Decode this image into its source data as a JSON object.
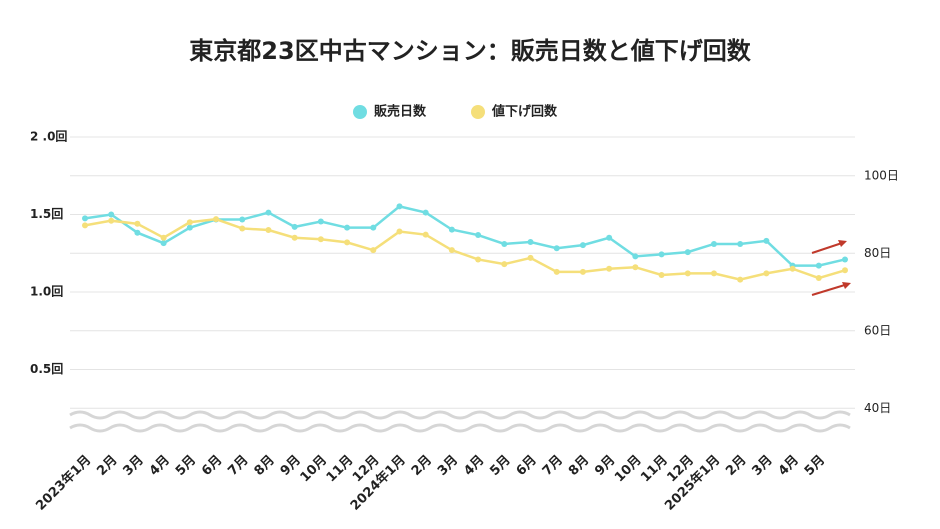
{
  "chart_data": {
    "type": "line",
    "title": "東京都23区中古マンション：販売日数と値下げ回数",
    "categories": [
      "2023年1月",
      "2月",
      "3月",
      "4月",
      "5月",
      "6月",
      "7月",
      "8月",
      "9月",
      "10月",
      "11月",
      "12月",
      "2024年1月",
      "2月",
      "3月",
      "4月",
      "5月",
      "6月",
      "7月",
      "8月",
      "9月",
      "10月",
      "11月",
      "12月",
      "2025年1月",
      "2月",
      "3月",
      "4月",
      "5月",
      null
    ],
    "series": [
      {
        "name": "販売日数",
        "color": "#70dde2",
        "axis": "y2",
        "values": [
          89.0,
          90.0,
          85.3,
          82.6,
          86.6,
          88.7,
          88.7,
          90.5,
          86.8,
          88.2,
          86.6,
          86.6,
          92.1,
          90.5,
          86.1,
          84.7,
          82.4,
          82.9,
          81.3,
          82.1,
          84.0,
          79.2,
          79.7,
          80.3,
          82.4,
          82.4,
          83.2,
          76.8,
          76.8,
          78.4
        ]
      },
      {
        "name": "値下げ回数",
        "color": "#f5df7a",
        "values": [
          1.43,
          1.46,
          1.44,
          1.35,
          1.45,
          1.47,
          1.41,
          1.4,
          1.35,
          1.34,
          1.32,
          1.27,
          1.39,
          1.37,
          1.27,
          1.21,
          1.18,
          1.22,
          1.13,
          1.13,
          1.15,
          1.16,
          1.11,
          1.12,
          1.12,
          1.08,
          1.12,
          1.15,
          1.09,
          1.14
        ]
      }
    ],
    "ylim": [
      0,
      2
    ],
    "yticks": [
      {
        "value": 2,
        "label": "2 .0回"
      },
      {
        "value": 1.5,
        "label": "1.5回"
      },
      {
        "value": 1,
        "label": "1.0回"
      },
      {
        "value": 0.5,
        "label": "0.5回"
      }
    ],
    "y2lim": [
      30,
      110
    ],
    "y2ticks": [
      {
        "value": 100,
        "label": "100日"
      },
      {
        "value": 80,
        "label": "80日"
      },
      {
        "value": 60,
        "label": "60日"
      },
      {
        "value": 40,
        "label": "40日"
      }
    ],
    "grid": true,
    "legend": "top"
  }
}
